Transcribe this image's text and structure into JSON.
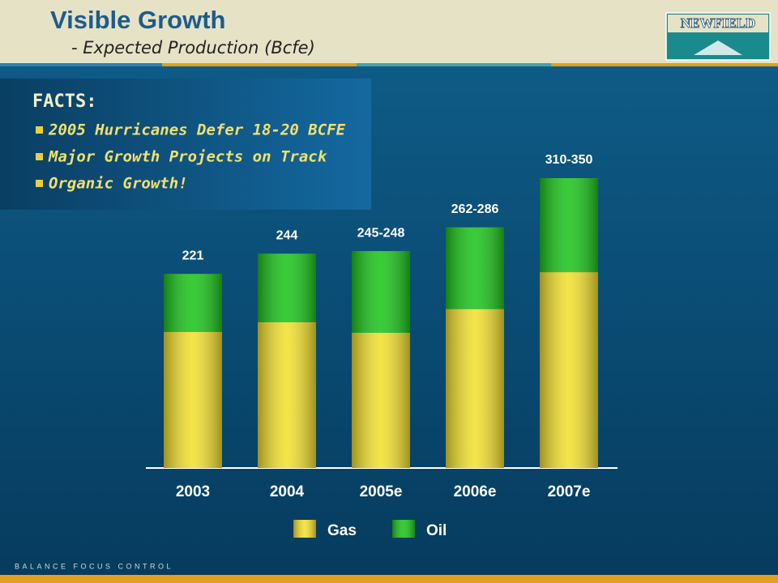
{
  "title": "Visible Growth",
  "subtitle": "- Expected Production (Bcfe)",
  "logo": "NEWFIELD",
  "footer": "BALANCE FOCUS CONTROL",
  "facts": {
    "heading": "FACTS:",
    "items": [
      "2005 Hurricanes Defer 18-20 BCFE",
      "Major Growth Projects on Track",
      "Organic Growth!"
    ]
  },
  "chart_data": {
    "type": "stacked-bar",
    "categories": [
      "2003",
      "2004",
      "2005e",
      "2006e",
      "2007e"
    ],
    "series": [
      {
        "name": "Gas",
        "color": "#f2e030",
        "values": [
          155,
          166,
          154,
          181,
          223
        ]
      },
      {
        "name": "Oil",
        "color": "#1ec41e",
        "values": [
          66,
          78,
          93,
          93,
          107
        ]
      }
    ],
    "value_labels": [
      "221",
      "244",
      "245-248",
      "262-286",
      "310-350"
    ]
  }
}
